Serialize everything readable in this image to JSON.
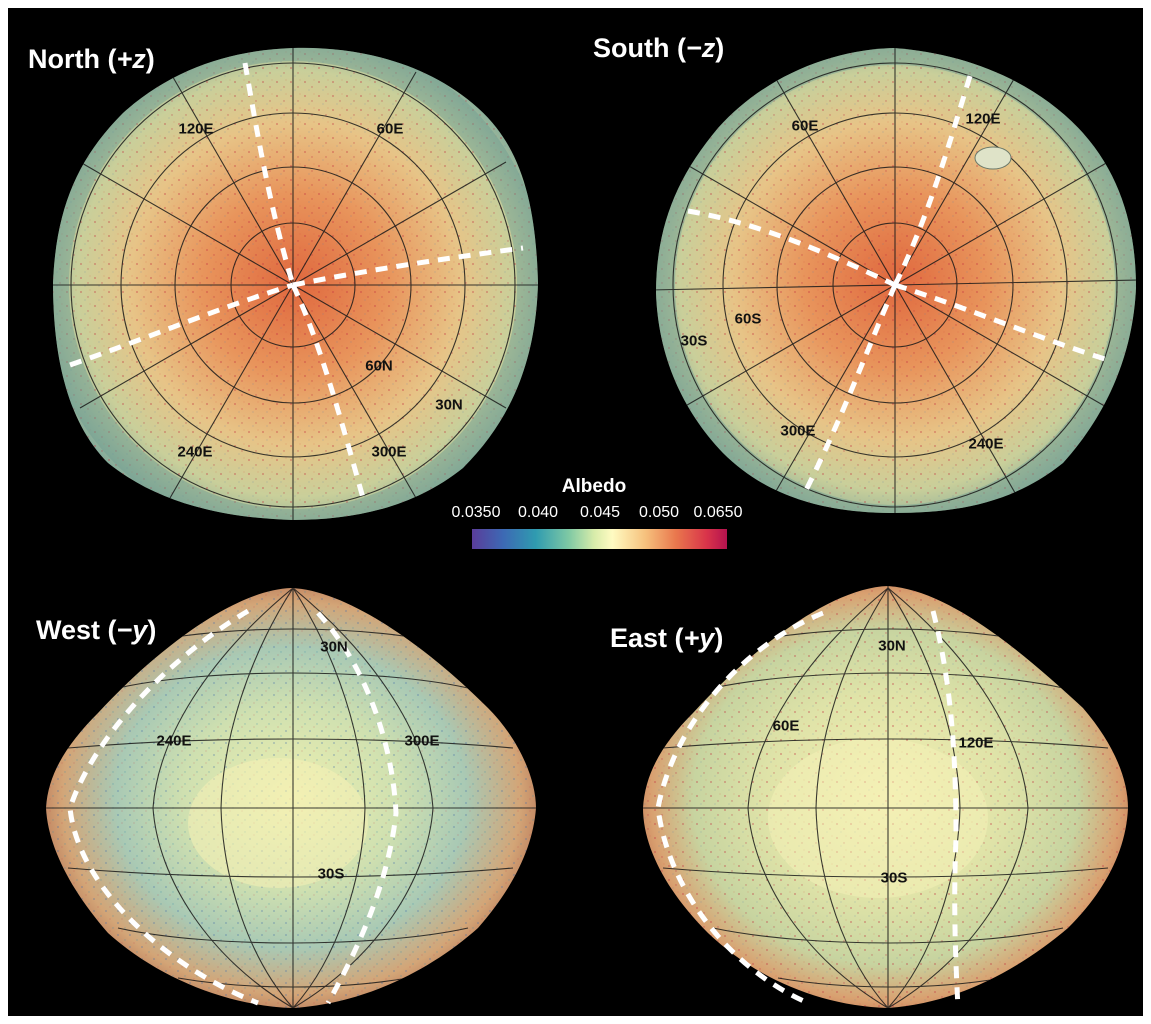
{
  "views": {
    "north": {
      "title": "North (",
      "axis": "+z",
      "close": ")"
    },
    "south": {
      "title": "South (",
      "axis": "−z",
      "close": ")"
    },
    "west": {
      "title": "West (",
      "axis": "−y",
      "close": ")"
    },
    "east": {
      "title": "East (",
      "axis": "+y",
      "close": ")"
    }
  },
  "grid_labels": {
    "north": [
      "120E",
      "60E",
      "60N",
      "30N",
      "240E",
      "300E"
    ],
    "south": [
      "60E",
      "120E",
      "60S",
      "30S",
      "300E",
      "240E"
    ],
    "west": [
      "30N",
      "240E",
      "300E",
      "30S"
    ],
    "east": [
      "30N",
      "60E",
      "120E",
      "30S"
    ]
  },
  "colorbar": {
    "title": "Albedo",
    "ticks": [
      "0.0350",
      "0.040",
      "0.045",
      "0.050",
      "0.0650"
    ]
  },
  "colors": {
    "background": "#000000",
    "dashed_boundary": "#ffffff",
    "low_albedo": "#5a3d9a",
    "high_albedo": "#b4124f"
  }
}
